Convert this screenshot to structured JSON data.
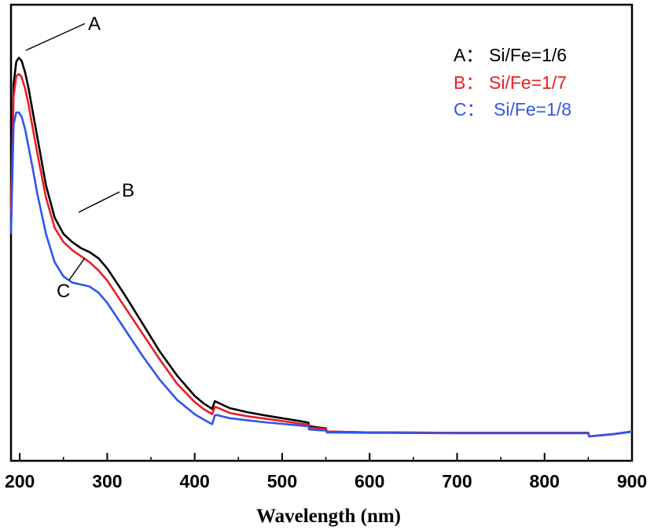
{
  "chart_data": {
    "type": "line",
    "title": "",
    "xlabel": "Wavelength (nm)",
    "ylabel": "",
    "xlim": [
      190,
      900
    ],
    "ylim": [
      0,
      1
    ],
    "x_ticks": [
      "200",
      "300",
      "400",
      "500",
      "600",
      "700",
      "800",
      "900"
    ],
    "y_ticks_shown": false,
    "grid": false,
    "legend_position": "top-right",
    "legend": [
      {
        "marker": "A：",
        "text": "Si/Fe=1/6",
        "color": "#000000"
      },
      {
        "marker": "B：",
        "text": "Si/Fe=1/7",
        "color": "#ee1c24"
      },
      {
        "marker": "C：",
        "text": "Si/Fe=1/8",
        "color": "#2f55ee"
      }
    ],
    "curve_labels": [
      "A",
      "B",
      "C"
    ],
    "series": [
      {
        "name": "A：Si/Fe=1/6",
        "color": "#000000",
        "x": [
          190,
          193,
          196,
          199,
          202,
          206,
          210,
          215,
          220,
          230,
          240,
          250,
          260,
          270,
          280,
          290,
          300,
          320,
          340,
          360,
          380,
          400,
          410,
          420,
          423,
          425,
          440,
          460,
          480,
          500,
          520,
          530,
          531,
          545,
          550,
          551,
          600,
          700,
          800,
          850,
          851,
          860,
          880,
          900
        ],
        "y": [
          0.58,
          0.87,
          0.925,
          0.935,
          0.928,
          0.9,
          0.86,
          0.8,
          0.74,
          0.62,
          0.54,
          0.5,
          0.48,
          0.465,
          0.455,
          0.44,
          0.415,
          0.35,
          0.28,
          0.21,
          0.15,
          0.1,
          0.082,
          0.068,
          0.087,
          0.085,
          0.07,
          0.06,
          0.052,
          0.045,
          0.038,
          0.034,
          0.025,
          0.021,
          0.02,
          0.012,
          0.01,
          0.009,
          0.009,
          0.009,
          0.0,
          0.002,
          0.006,
          0.012
        ]
      },
      {
        "name": "B：Si/Fe=1/7",
        "color": "#ee1c24",
        "x": [
          190,
          193,
          196,
          199,
          202,
          206,
          210,
          215,
          220,
          230,
          240,
          250,
          260,
          270,
          280,
          290,
          300,
          320,
          340,
          360,
          380,
          400,
          410,
          420,
          423,
          425,
          440,
          460,
          480,
          500,
          520,
          530,
          531,
          545,
          550,
          551,
          600,
          700,
          800,
          850,
          851,
          860,
          880,
          900
        ],
        "y": [
          0.55,
          0.84,
          0.89,
          0.895,
          0.888,
          0.86,
          0.82,
          0.76,
          0.7,
          0.59,
          0.515,
          0.48,
          0.46,
          0.445,
          0.43,
          0.41,
          0.385,
          0.32,
          0.255,
          0.19,
          0.13,
          0.085,
          0.068,
          0.055,
          0.073,
          0.072,
          0.058,
          0.05,
          0.044,
          0.038,
          0.032,
          0.029,
          0.022,
          0.019,
          0.018,
          0.012,
          0.01,
          0.009,
          0.009,
          0.009,
          0.0,
          0.002,
          0.006,
          0.012
        ]
      },
      {
        "name": "C：Si/Fe=1/8",
        "color": "#2f55ee",
        "x": [
          190,
          193,
          196,
          199,
          202,
          206,
          210,
          215,
          220,
          230,
          240,
          250,
          260,
          270,
          280,
          290,
          300,
          320,
          340,
          360,
          380,
          400,
          410,
          420,
          423,
          425,
          440,
          460,
          480,
          500,
          520,
          530,
          531,
          545,
          550,
          551,
          600,
          700,
          800,
          850,
          851,
          860,
          880,
          900
        ],
        "y": [
          0.5,
          0.77,
          0.8,
          0.8,
          0.79,
          0.76,
          0.715,
          0.66,
          0.6,
          0.5,
          0.43,
          0.395,
          0.38,
          0.375,
          0.37,
          0.355,
          0.33,
          0.265,
          0.2,
          0.14,
          0.09,
          0.055,
          0.042,
          0.03,
          0.052,
          0.053,
          0.045,
          0.04,
          0.035,
          0.031,
          0.027,
          0.025,
          0.017,
          0.015,
          0.015,
          0.01,
          0.009,
          0.008,
          0.008,
          0.008,
          0.0,
          0.002,
          0.006,
          0.012
        ]
      }
    ]
  }
}
